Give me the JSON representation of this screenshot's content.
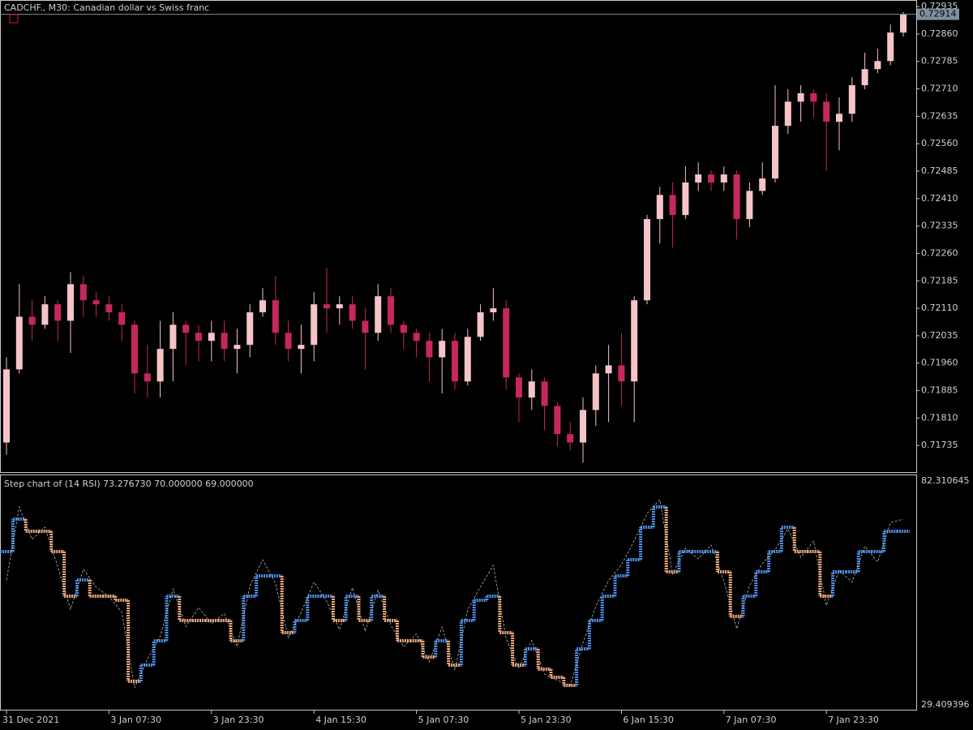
{
  "chart_data": [
    {
      "type": "candlestick",
      "title": "CADCHF., M30:  Canadian dollar vs Swiss franc",
      "categories": [
        "31 Dec 2021",
        null,
        null,
        null,
        null,
        null,
        null,
        null,
        "3 Jan 07:30",
        null,
        null,
        null,
        null,
        null,
        null,
        null,
        "3 Jan 23:30",
        null,
        null,
        null,
        null,
        null,
        null,
        null,
        "4 Jan 15:30",
        null,
        null,
        null,
        null,
        null,
        null,
        null,
        "5 Jan 07:30",
        null,
        null,
        null,
        null,
        null,
        null,
        null,
        "5 Jan 23:30",
        null,
        null,
        null,
        null,
        null,
        null,
        null,
        "6 Jan 15:30",
        null,
        null,
        null,
        null,
        null,
        null,
        null,
        "7 Jan 07:30",
        null,
        null,
        null,
        null,
        null,
        null,
        null,
        "7 Jan 23:30",
        null,
        null,
        null,
        null,
        null,
        null
      ],
      "open": [
        0.71743,
        0.71943,
        0.72087,
        0.72065,
        0.72121,
        0.72076,
        0.72176,
        0.72132,
        0.72121,
        0.72099,
        0.72065,
        0.71932,
        0.7191,
        0.71999,
        0.72065,
        0.72043,
        0.72021,
        0.72043,
        0.71999,
        0.7201,
        0.72099,
        0.72132,
        0.72043,
        0.71999,
        0.7201,
        0.72121,
        0.7211,
        0.72121,
        0.72076,
        0.72043,
        0.72143,
        0.72065,
        0.72043,
        0.72021,
        0.71976,
        0.72021,
        0.7191,
        0.72032,
        0.72099,
        0.7211,
        0.71921,
        0.71866,
        0.7191,
        0.71843,
        0.71766,
        0.71743,
        0.71832,
        0.71932,
        0.71954,
        0.7191,
        0.72132,
        0.72354,
        0.7242,
        0.72365,
        0.72454,
        0.72476,
        0.72454,
        0.72476,
        0.72354,
        0.72431,
        0.72465,
        0.72609,
        0.72675,
        0.72698,
        0.72675,
        0.7262,
        0.72642,
        0.7272,
        0.72764,
        0.72786,
        0.72864
      ],
      "high": [
        0.71976,
        0.72176,
        0.72132,
        0.72143,
        0.72132,
        0.72209,
        0.72198,
        0.72154,
        0.72143,
        0.72121,
        0.72076,
        0.7201,
        0.72076,
        0.72099,
        0.72076,
        0.72065,
        0.72076,
        0.72076,
        0.72054,
        0.72121,
        0.72165,
        0.72198,
        0.72076,
        0.72065,
        0.72154,
        0.72221,
        0.72143,
        0.72143,
        0.7211,
        0.72176,
        0.72165,
        0.72076,
        0.72054,
        0.72043,
        0.72054,
        0.72043,
        0.72054,
        0.72121,
        0.72165,
        0.72132,
        0.71932,
        0.71943,
        0.71921,
        0.71854,
        0.71799,
        0.71866,
        0.71954,
        0.7201,
        0.72043,
        0.72143,
        0.72365,
        0.72442,
        0.72454,
        0.72498,
        0.72509,
        0.72487,
        0.72498,
        0.72487,
        0.72454,
        0.72509,
        0.7272,
        0.72709,
        0.7272,
        0.72709,
        0.72698,
        0.72687,
        0.72742,
        0.72809,
        0.7282,
        0.72886,
        0.7292
      ],
      "low": [
        0.7171,
        0.71932,
        0.72021,
        0.72054,
        0.72021,
        0.71988,
        0.72087,
        0.72087,
        0.72076,
        0.72021,
        0.71877,
        0.71866,
        0.71866,
        0.7191,
        0.71954,
        0.71965,
        0.71965,
        0.71965,
        0.71932,
        0.71976,
        0.72087,
        0.7201,
        0.71965,
        0.71932,
        0.71965,
        0.72043,
        0.72065,
        0.72054,
        0.71943,
        0.72021,
        0.72043,
        0.71999,
        0.71976,
        0.7191,
        0.71877,
        0.71888,
        0.71899,
        0.72021,
        0.72076,
        0.71888,
        0.71799,
        0.71832,
        0.71777,
        0.71732,
        0.71721,
        0.71688,
        0.71788,
        0.71799,
        0.71843,
        0.71799,
        0.72121,
        0.72287,
        0.72276,
        0.72354,
        0.72431,
        0.72431,
        0.72431,
        0.72298,
        0.72332,
        0.7242,
        0.72454,
        0.72587,
        0.7262,
        0.72631,
        0.72487,
        0.72542,
        0.7262,
        0.72709,
        0.72753,
        0.72775,
        0.72853
      ],
      "close": [
        0.71943,
        0.72087,
        0.72065,
        0.72121,
        0.72076,
        0.72176,
        0.72132,
        0.72121,
        0.72099,
        0.72065,
        0.71932,
        0.7191,
        0.71999,
        0.72065,
        0.72043,
        0.72021,
        0.72043,
        0.71999,
        0.7201,
        0.72099,
        0.72132,
        0.72043,
        0.71999,
        0.7201,
        0.72121,
        0.7211,
        0.72121,
        0.72076,
        0.72043,
        0.72143,
        0.72065,
        0.72043,
        0.72021,
        0.71976,
        0.72021,
        0.7191,
        0.72032,
        0.72099,
        0.7211,
        0.71921,
        0.71866,
        0.7191,
        0.71843,
        0.71766,
        0.71743,
        0.71832,
        0.71932,
        0.71954,
        0.7191,
        0.72132,
        0.72354,
        0.7242,
        0.72365,
        0.72454,
        0.72476,
        0.72454,
        0.72476,
        0.72354,
        0.72431,
        0.72465,
        0.72609,
        0.72675,
        0.72698,
        0.72675,
        0.7262,
        0.72642,
        0.7272,
        0.72764,
        0.72786,
        0.72864,
        0.72914
      ],
      "up_color": "#f4c4c6",
      "down_color": "#c4285c",
      "last_price": 0.72914,
      "last_price_color": "#7f8fa0",
      "ylim": [
        0.7166,
        0.72953
      ],
      "yticks": [
        0.72935,
        {
          "value": 0.7286,
          "label": "0.72860"
        },
        0.72785,
        {
          "value": 0.7271,
          "label": "0.72710"
        },
        0.72635,
        {
          "value": 0.7256,
          "label": "0.72560"
        },
        0.72485,
        {
          "value": 0.7241,
          "label": "0.72410"
        },
        0.72335,
        {
          "value": 0.7226,
          "label": "0.72260"
        },
        0.72185,
        {
          "value": 0.7211,
          "label": "0.72110"
        },
        0.72035,
        {
          "value": 0.7196,
          "label": "0.71960"
        },
        0.71885,
        {
          "value": 0.7181,
          "label": "0.71810"
        },
        0.71735
      ]
    },
    {
      "type": "step",
      "title": "Step chart of (14 RSI) 73.276730 70.000000 69.000000",
      "step": {
        "up_color": "#4a8ee6",
        "down_color": "#f2a979",
        "values": [
          65.63,
          73.3,
          70.43,
          70.43,
          65.63,
          55.09,
          58.93,
          55.09,
          55.09,
          54.13,
          34.96,
          38.8,
          44.55,
          55.09,
          49.34,
          49.34,
          49.34,
          49.34,
          44.55,
          55.09,
          59.88,
          59.88,
          46.47,
          49.34,
          55.09,
          55.09,
          49.34,
          55.09,
          49.34,
          55.09,
          49.34,
          44.55,
          44.55,
          40.72,
          44.55,
          38.8,
          49.34,
          54.13,
          55.09,
          46.47,
          38.8,
          42.63,
          37.84,
          35.92,
          34.01,
          42.63,
          49.34,
          55.09,
          59.88,
          63.72,
          71.38,
          76.18,
          60.84,
          65.63,
          65.63,
          65.63,
          60.84,
          50.3,
          55.09,
          60.84,
          65.63,
          71.38,
          65.63,
          65.63,
          55.09,
          60.84,
          60.84,
          65.63,
          65.63,
          70.43,
          70.43
        ]
      },
      "rsi": {
        "color": "#b4b4b4",
        "values": [
          58.9,
          76.2,
          68.5,
          71.4,
          62.1,
          52.0,
          61.5,
          57.2,
          55.0,
          51.3,
          33.5,
          40.2,
          45.6,
          56.8,
          47.9,
          52.4,
          48.6,
          51.0,
          43.2,
          57.5,
          63.7,
          58.1,
          45.3,
          51.2,
          58.4,
          53.9,
          47.2,
          57.1,
          46.8,
          56.5,
          48.3,
          43.1,
          46.2,
          39.5,
          47.8,
          37.6,
          51.9,
          57.3,
          62.4,
          45.1,
          38.0,
          44.6,
          36.7,
          35.2,
          33.9,
          44.1,
          52.7,
          58.8,
          62.5,
          68.2,
          74.6,
          77.9,
          60.3,
          66.4,
          63.9,
          67.2,
          58.7,
          47.4,
          57.6,
          62.8,
          66.1,
          71.0,
          64.3,
          68.1,
          52.9,
          61.2,
          58.4,
          66.9,
          63.2,
          72.5,
          73.28
        ]
      },
      "ylim": [
        29.409396,
        82.310645
      ]
    }
  ]
}
